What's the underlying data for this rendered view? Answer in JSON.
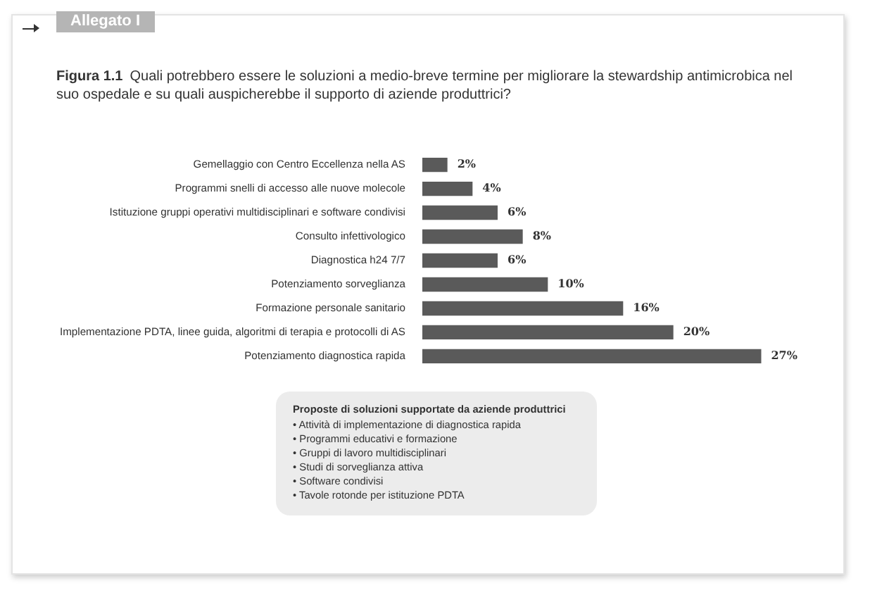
{
  "chart_data": {
    "type": "bar",
    "orientation": "horizontal",
    "title": "Figura 1.1",
    "subtitle": "Quali potrebbero essere le soluzioni a medio-breve termine per migliorare la stewardship antimicrobica nel suo ospedale e su quali auspicherebbe il supporto di aziende produttrici?",
    "categories": [
      "Gemellaggio con Centro Eccellenza nella AS",
      "Programmi snelli di accesso alle nuove molecole",
      "Istituzione gruppi operativi multidisciplinari e software condivisi",
      "Consulto infettivologico",
      "Diagnostica h24 7/7",
      "Potenziamento sorveglianza",
      "Formazione personale sanitario",
      "Implementazione PDTA, linee guida, algoritmi di terapia e protocolli di AS",
      "Potenziamento diagnostica rapida"
    ],
    "values": [
      2,
      4,
      6,
      8,
      6,
      10,
      16,
      20,
      27
    ],
    "value_labels": [
      "2%",
      "4%",
      "6%",
      "8%",
      "6%",
      "10%",
      "16%",
      "20%",
      "27%"
    ],
    "color": "#5a5a5a",
    "annotations": [
      "Allegato I",
      "Proposte di soluzioni supportate da aziende produttrici",
      "• Attività di implementazione di diagnostica rapida",
      "• Programmi educativi e formazione",
      "• Gruppi di lavoro multidisciplinari",
      "• Studi di sorveglianza attiva",
      "• Software condivisi",
      "• Tavole rotonde per istituzione PDTA"
    ]
  }
}
